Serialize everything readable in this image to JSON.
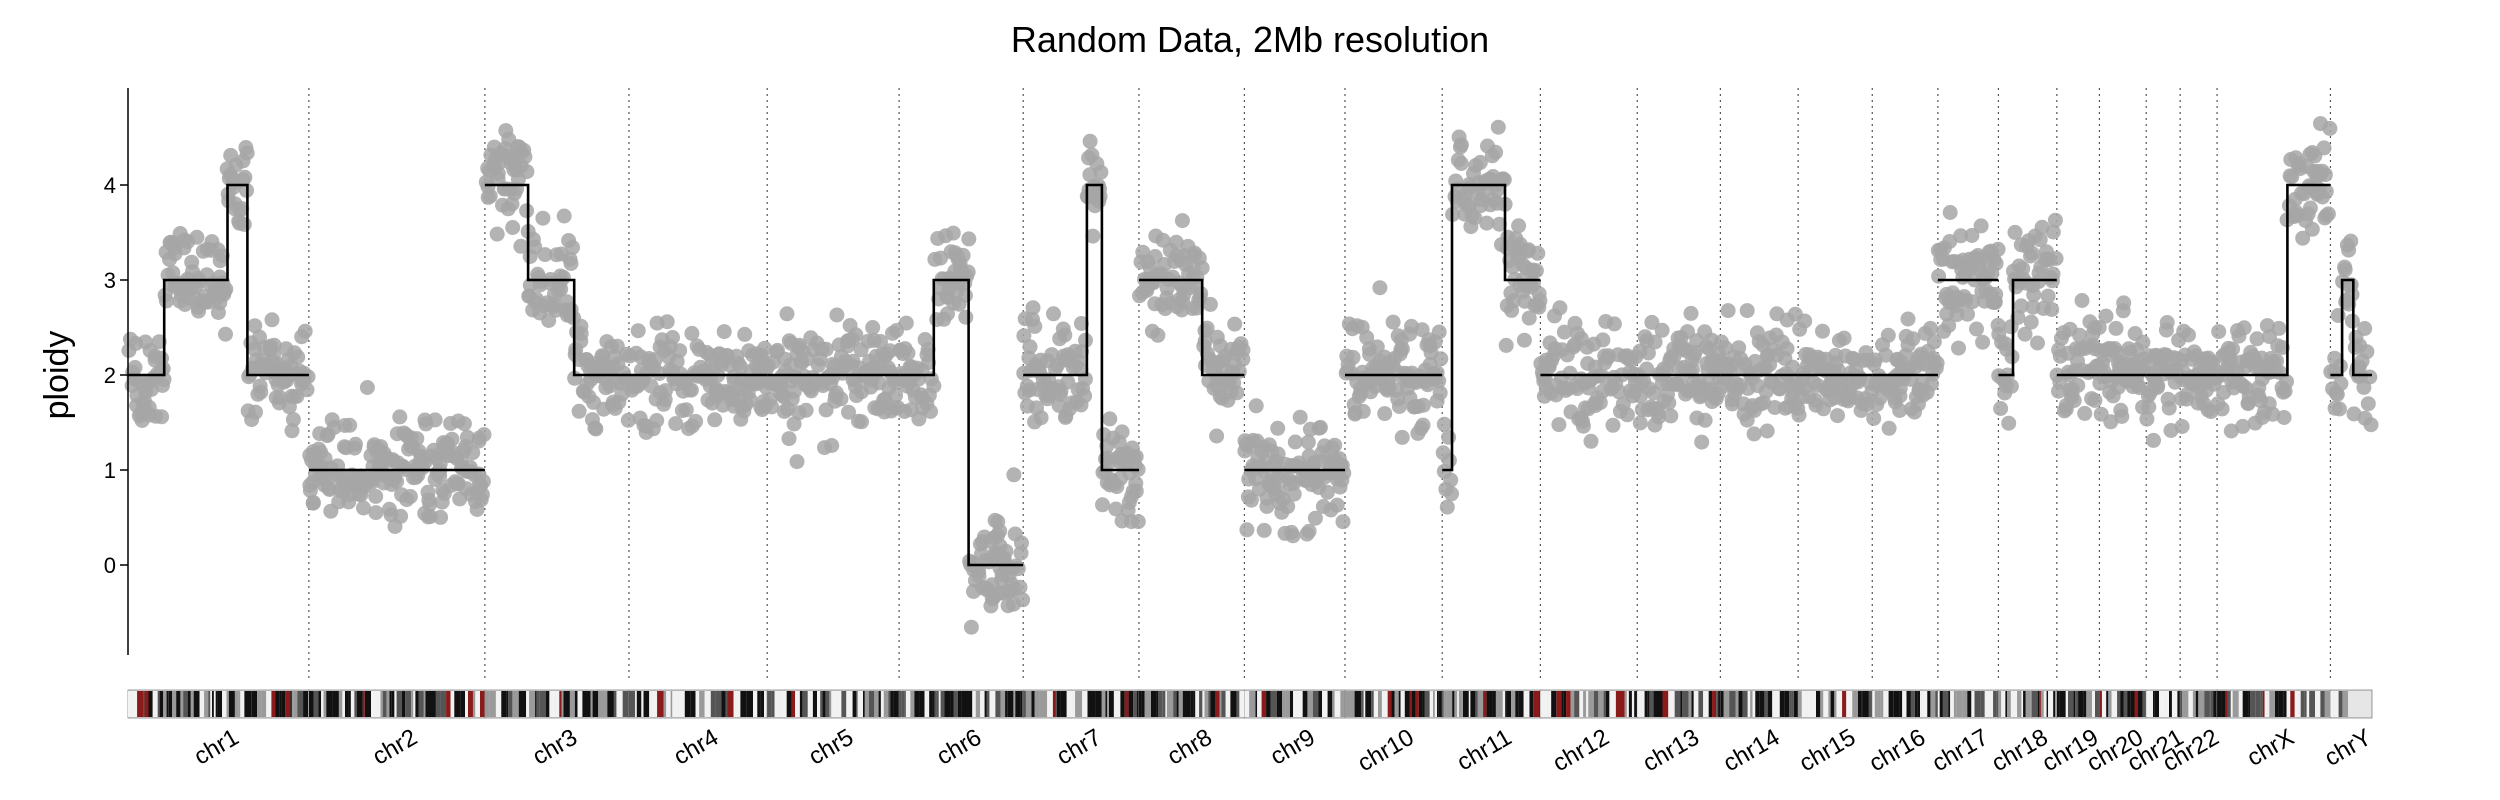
{
  "chart_data": {
    "type": "scatter",
    "title": "Random Data, 2Mb resolution",
    "xlabel": "",
    "ylabel": "ploidy",
    "ylim": [
      -1,
      5
    ],
    "yticks": [
      0,
      1,
      2,
      3,
      4
    ],
    "grid": false,
    "legend": "none",
    "colors": {
      "points": "#a6a6a6",
      "segments": "#000000",
      "separators": "#555555",
      "axis": "#000000"
    },
    "chromosomes": [
      {
        "name": "chr1",
        "length_mb": 248.9,
        "segments": [
          [
            0,
            0.2,
            2
          ],
          [
            0.2,
            0.55,
            3
          ],
          [
            0.55,
            0.66,
            4
          ],
          [
            0.66,
            1.0,
            2
          ]
        ]
      },
      {
        "name": "chr2",
        "length_mb": 242.2,
        "segments": [
          [
            0,
            1.0,
            1
          ]
        ]
      },
      {
        "name": "chr3",
        "length_mb": 198.3,
        "segments": [
          [
            0,
            0.3,
            4
          ],
          [
            0.3,
            0.62,
            3
          ],
          [
            0.62,
            1.0,
            2
          ]
        ]
      },
      {
        "name": "chr4",
        "length_mb": 190.2,
        "segments": [
          [
            0,
            1.0,
            2
          ]
        ]
      },
      {
        "name": "chr5",
        "length_mb": 181.5,
        "segments": [
          [
            0,
            1.0,
            2
          ]
        ]
      },
      {
        "name": "chr6",
        "length_mb": 170.8,
        "segments": [
          [
            0,
            0.28,
            2
          ],
          [
            0.28,
            0.56,
            3
          ],
          [
            0.56,
            1.0,
            0
          ]
        ]
      },
      {
        "name": "chr7",
        "length_mb": 159.3,
        "segments": [
          [
            0,
            0.55,
            2
          ],
          [
            0.55,
            0.68,
            4
          ],
          [
            0.68,
            1.0,
            1
          ]
        ]
      },
      {
        "name": "chr8",
        "length_mb": 145.1,
        "segments": [
          [
            0,
            0.6,
            3
          ],
          [
            0.6,
            1.0,
            2
          ]
        ]
      },
      {
        "name": "chr9",
        "length_mb": 138.4,
        "segments": [
          [
            0,
            1.0,
            1
          ]
        ]
      },
      {
        "name": "chr10",
        "length_mb": 133.8,
        "segments": [
          [
            0,
            1.0,
            2
          ]
        ]
      },
      {
        "name": "chr11",
        "length_mb": 135.1,
        "segments": [
          [
            0,
            0.1,
            1
          ],
          [
            0.1,
            0.64,
            4
          ],
          [
            0.64,
            1.0,
            3
          ]
        ]
      },
      {
        "name": "chr12",
        "length_mb": 133.3,
        "segments": [
          [
            0,
            1.0,
            2
          ]
        ]
      },
      {
        "name": "chr13",
        "length_mb": 114.4,
        "segments": [
          [
            0,
            1.0,
            2
          ]
        ]
      },
      {
        "name": "chr14",
        "length_mb": 107.0,
        "segments": [
          [
            0,
            1.0,
            2
          ]
        ]
      },
      {
        "name": "chr15",
        "length_mb": 102.0,
        "segments": [
          [
            0,
            1.0,
            2
          ]
        ]
      },
      {
        "name": "chr16",
        "length_mb": 90.3,
        "segments": [
          [
            0,
            1.0,
            2
          ]
        ]
      },
      {
        "name": "chr17",
        "length_mb": 83.3,
        "segments": [
          [
            0,
            1.0,
            3
          ]
        ]
      },
      {
        "name": "chr18",
        "length_mb": 80.4,
        "segments": [
          [
            0,
            0.25,
            2
          ],
          [
            0.25,
            1.0,
            3
          ]
        ]
      },
      {
        "name": "chr19",
        "length_mb": 58.6,
        "segments": [
          [
            0,
            1.0,
            2
          ]
        ]
      },
      {
        "name": "chr20",
        "length_mb": 64.4,
        "segments": [
          [
            0,
            1.0,
            2
          ]
        ]
      },
      {
        "name": "chr21",
        "length_mb": 46.7,
        "segments": [
          [
            0,
            1.0,
            2
          ]
        ]
      },
      {
        "name": "chr22",
        "length_mb": 50.8,
        "segments": [
          [
            0,
            1.0,
            2
          ]
        ]
      },
      {
        "name": "chrX",
        "length_mb": 156.0,
        "segments": [
          [
            0,
            0.62,
            2
          ],
          [
            0.62,
            1.0,
            4
          ]
        ]
      },
      {
        "name": "chrY",
        "length_mb": 57.2,
        "segments": [
          [
            0,
            0.28,
            2
          ],
          [
            0.28,
            0.55,
            3
          ],
          [
            0.55,
            1.0,
            2
          ]
        ]
      }
    ]
  }
}
